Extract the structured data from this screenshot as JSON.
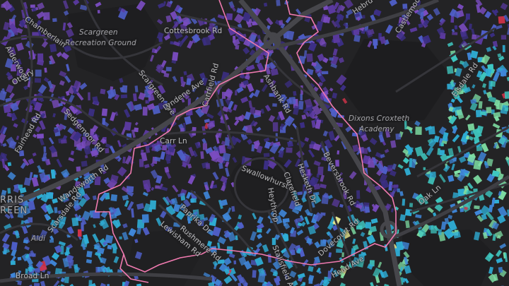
{
  "map": {
    "colors": {
      "background": "#232325",
      "road": "#3a3a3e",
      "major_road": "#46464b",
      "boundary": "#f07ab0",
      "park": "#1c1c1e",
      "palette": [
        "#3c2f86",
        "#5b3aa0",
        "#7a4cc0",
        "#4f5fc8",
        "#3f86d8",
        "#2faed6",
        "#3fc7c0",
        "#7fe0a5",
        "#e7e78f",
        "#d4334a"
      ]
    },
    "labels": {
      "scargreen": "Scargreen",
      "recreation_ground": "Recreation Ground",
      "cottesbrook_rd": "Cottesbrook Rd",
      "scargreen_ave": "Scargreen Ave",
      "lyndene_ave": "Lyndene Ave",
      "ashbank_rd": "Ashbank Rd",
      "dixons_croxteth": "Dixons Croxteth",
      "academy": "Academy",
      "carr_ln": "Carr Ln",
      "swallowhurst": "Swallowhurst",
      "clarefield": "Clarefield",
      "hesketh_dr": "Hesketh Dr",
      "heythrop": "Heythrop",
      "beversbrook_rd": "Beversbrook Rd",
      "wandsworth_rd": "Wandsworth Rd",
      "paprika_dr": "Paprika Dr",
      "rushmere_rd": "Rushmere Rd",
      "lewisham_rd": "Lewisham Rd",
      "scarsdale_rd": "Scarsdale Rd",
      "aldi": "Aldi",
      "broad_ln": "Broad Ln",
      "norris": "RRIS",
      "green": "REEN",
      "stalisfield_ave": "Stalisfield Ave",
      "dovecourt_rd": "Dovecourt Rd",
      "head_ave": "Head Ave",
      "oak_ln": "Oak Ln",
      "elsdale_rd": "Elsdale Rd",
      "chamberlain": "Chamberlain",
      "alderwood": "Alderwood",
      "fairhead_rd": "Fairhead Rd",
      "sedgemoor_rd": "Sedgemoor Rd",
      "carrfield_rd": "Carrfield Rd",
      "castlemoor": "Castlemoor",
      "ottery": "Ottery",
      "hebrd": "Hebrd"
    }
  }
}
